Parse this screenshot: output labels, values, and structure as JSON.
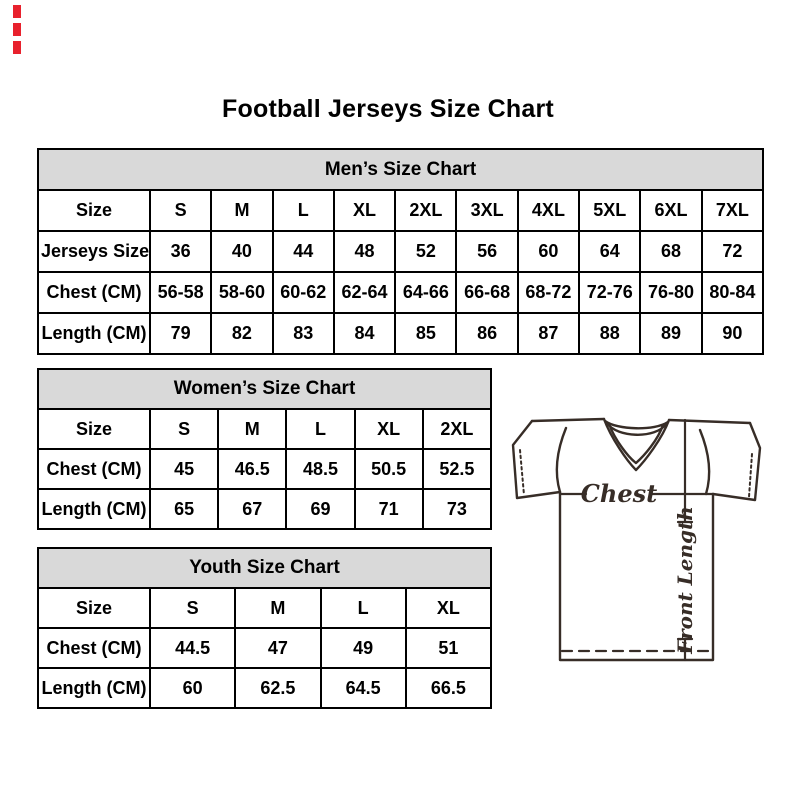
{
  "title": "Football Jerseys Size Chart",
  "chart_data": [
    {
      "type": "table",
      "title": "Men’s Size Chart",
      "rows": [
        {
          "label": "Size",
          "values": [
            "S",
            "M",
            "L",
            "XL",
            "2XL",
            "3XL",
            "4XL",
            "5XL",
            "6XL",
            "7XL"
          ]
        },
        {
          "label": "Jerseys Size",
          "values": [
            "36",
            "40",
            "44",
            "48",
            "52",
            "56",
            "60",
            "64",
            "68",
            "72"
          ]
        },
        {
          "label": "Chest (CM)",
          "values": [
            "56-58",
            "58-60",
            "60-62",
            "62-64",
            "64-66",
            "66-68",
            "68-72",
            "72-76",
            "76-80",
            "80-84"
          ]
        },
        {
          "label": "Length (CM)",
          "values": [
            "79",
            "82",
            "83",
            "84",
            "85",
            "86",
            "87",
            "88",
            "89",
            "90"
          ]
        }
      ]
    },
    {
      "type": "table",
      "title": "Women’s Size Chart",
      "rows": [
        {
          "label": "Size",
          "values": [
            "S",
            "M",
            "L",
            "XL",
            "2XL"
          ]
        },
        {
          "label": "Chest (CM)",
          "values": [
            "45",
            "46.5",
            "48.5",
            "50.5",
            "52.5"
          ]
        },
        {
          "label": "Length (CM)",
          "values": [
            "65",
            "67",
            "69",
            "71",
            "73"
          ]
        }
      ]
    },
    {
      "type": "table",
      "title": "Youth Size Chart",
      "rows": [
        {
          "label": "Size",
          "values": [
            "S",
            "M",
            "L",
            "XL"
          ]
        },
        {
          "label": "Chest (CM)",
          "values": [
            "44.5",
            "47",
            "49",
            "51"
          ]
        },
        {
          "label": "Length (CM)",
          "values": [
            "60",
            "62.5",
            "64.5",
            "66.5"
          ]
        }
      ]
    }
  ],
  "diagram": {
    "chest_label": "Chest",
    "front_length_label": "Front Length"
  },
  "colors": {
    "table_header_bg": "#d9d9d9",
    "table_border": "#000000",
    "text": "#000000",
    "jersey_line": "#372d27",
    "accent_marks": "#e8212d"
  }
}
